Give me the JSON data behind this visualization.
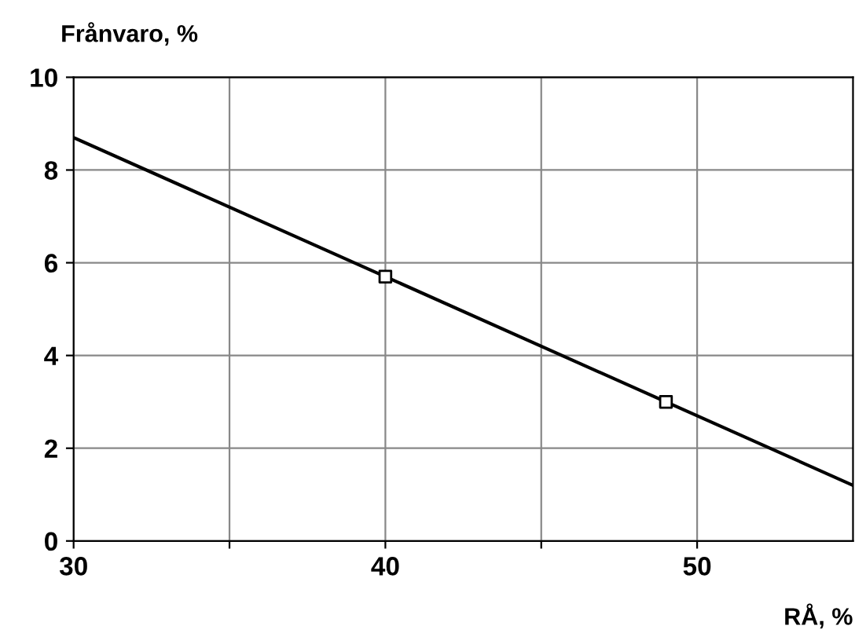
{
  "chart_data": {
    "type": "line",
    "ylabel": "Frånvaro, %",
    "xlabel": "RÅ, %",
    "series": [
      {
        "x": [
          30,
          55
        ],
        "values": [
          8.7,
          1.2
        ],
        "color": "#000000",
        "marker": "none",
        "line_style": "solid"
      },
      {
        "type": "scatter",
        "x": [
          40,
          49
        ],
        "values": [
          5.7,
          3.0
        ],
        "color": "#000000",
        "marker": "square"
      }
    ],
    "xlim": [
      30,
      55
    ],
    "xticks": [
      30,
      {
        "value": 35,
        "label": null
      },
      40,
      {
        "value": 45,
        "label": null
      },
      50
    ],
    "ylim": [
      0,
      10
    ],
    "yticks": [
      0,
      2,
      4,
      6,
      8,
      10
    ],
    "grid": true
  }
}
